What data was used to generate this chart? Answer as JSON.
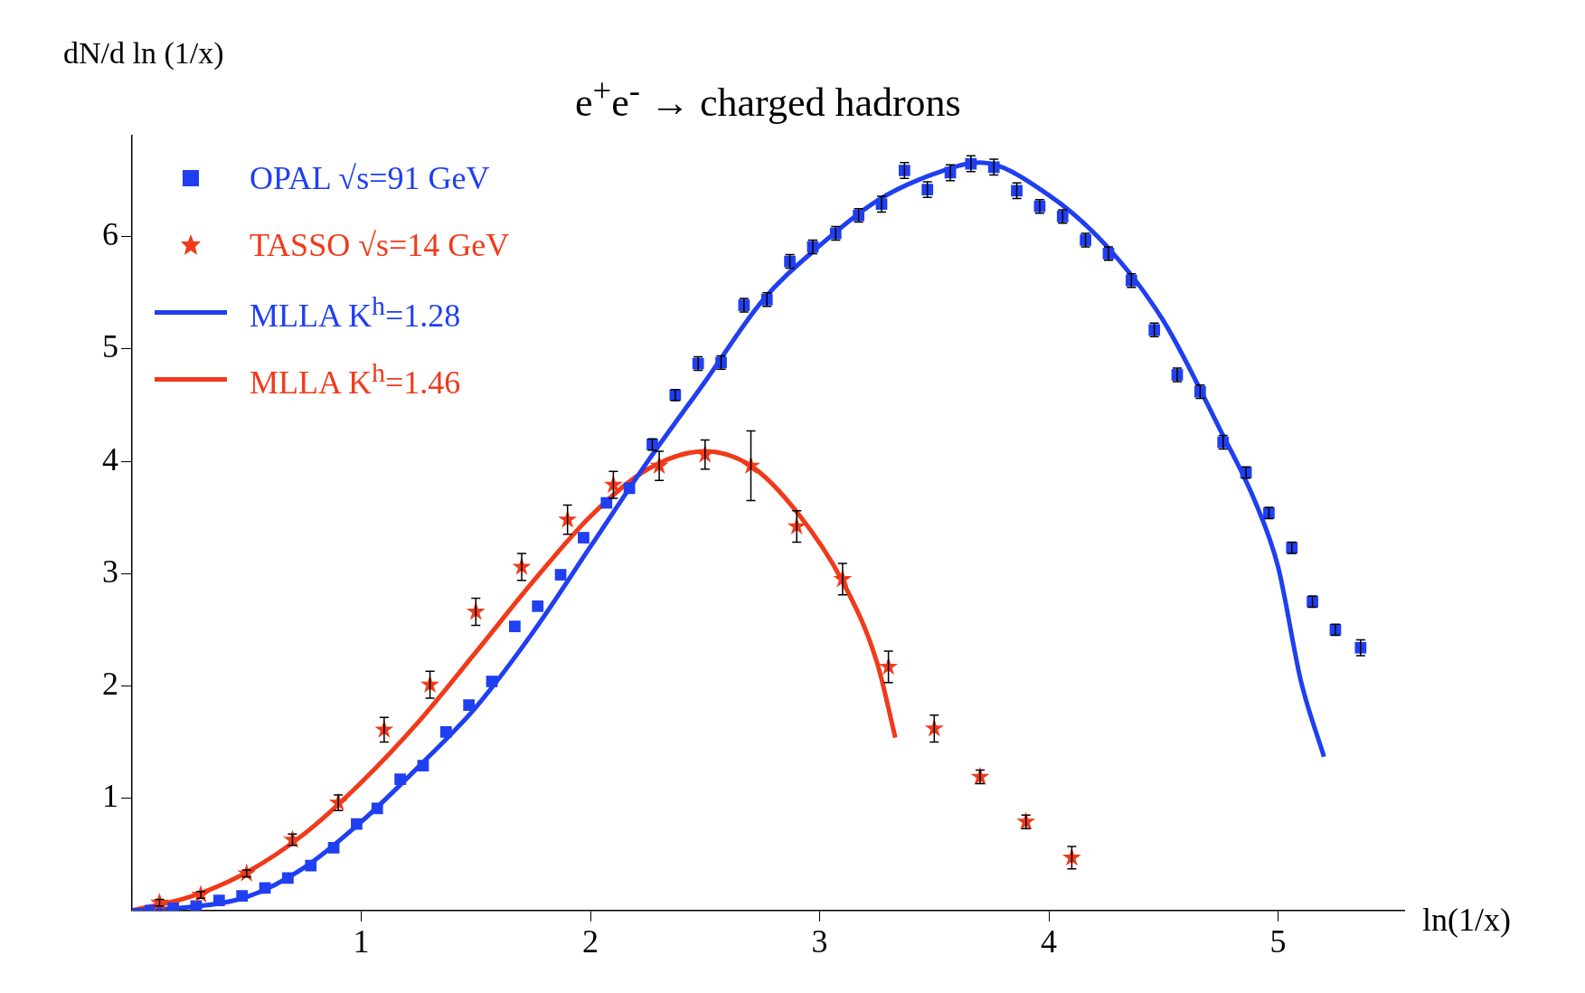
{
  "chart_data": {
    "type": "scatter",
    "title": "e$^{+}$e$^{-}$ → charged hadrons",
    "ylabel": "dN/d ln (1/x)",
    "xlabel": "ln(1/x)",
    "xlim": [
      0,
      5.55
    ],
    "xticks": [
      1,
      2,
      3,
      4,
      5
    ],
    "ylim": [
      0,
      6.9
    ],
    "yticks": [
      1,
      2,
      3,
      4,
      5,
      6
    ],
    "grid": false,
    "legend": "top left",
    "series": [
      {
        "name": "OPAL √s=91 GeV",
        "type": "scatter",
        "marker": "square",
        "color": "#1f3ff0",
        "x": [
          0.08,
          0.18,
          0.28,
          0.38,
          0.48,
          0.58,
          0.68,
          0.78,
          0.88,
          0.98,
          1.07,
          1.17,
          1.27,
          1.37,
          1.47,
          1.57,
          1.67,
          1.77,
          1.87,
          1.97,
          2.07,
          2.17,
          2.27,
          2.37,
          2.47,
          2.57,
          2.67,
          2.77,
          2.87,
          2.97,
          3.07,
          3.17,
          3.27,
          3.37,
          3.47,
          3.57,
          3.66,
          3.76,
          3.86,
          3.96,
          4.06,
          4.16,
          4.26,
          4.36,
          4.46,
          4.56,
          4.66,
          4.76,
          4.86,
          4.96,
          5.06,
          5.15,
          5.25,
          5.36
        ],
        "values": [
          0.0,
          0.02,
          0.04,
          0.09,
          0.13,
          0.2,
          0.29,
          0.4,
          0.56,
          0.77,
          0.91,
          1.17,
          1.29,
          1.59,
          1.83,
          2.04,
          2.53,
          2.71,
          2.99,
          3.32,
          3.63,
          3.76,
          4.15,
          4.59,
          4.87,
          4.88,
          5.39,
          5.44,
          5.78,
          5.91,
          6.03,
          6.19,
          6.29,
          6.59,
          6.42,
          6.57,
          6.65,
          6.62,
          6.41,
          6.27,
          6.18,
          5.97,
          5.85,
          5.61,
          5.17,
          4.77,
          4.62,
          4.17,
          3.9,
          3.54,
          3.23,
          2.75,
          2.5,
          2.34
        ],
        "errors": [
          null,
          null,
          null,
          null,
          null,
          null,
          null,
          null,
          null,
          null,
          null,
          null,
          null,
          null,
          null,
          null,
          null,
          null,
          null,
          null,
          null,
          null,
          0.05,
          0.05,
          0.06,
          0.06,
          0.06,
          0.06,
          0.06,
          0.06,
          0.06,
          0.06,
          0.07,
          0.07,
          0.07,
          0.07,
          0.07,
          0.07,
          0.07,
          0.06,
          0.06,
          0.06,
          0.06,
          0.06,
          0.06,
          0.06,
          0.06,
          0.06,
          0.05,
          0.05,
          0.05,
          0.05,
          0.05,
          0.07
        ]
      },
      {
        "name": "TASSO √s=14 GeV",
        "type": "scatter",
        "marker": "star",
        "color": "#f03a1a",
        "x": [
          0.12,
          0.3,
          0.5,
          0.7,
          0.9,
          1.1,
          1.3,
          1.5,
          1.7,
          1.9,
          2.1,
          2.3,
          2.5,
          2.7,
          2.9,
          3.1,
          3.3,
          3.5,
          3.7,
          3.9,
          4.1
        ],
        "values": [
          0.07,
          0.14,
          0.33,
          0.63,
          0.96,
          1.61,
          2.01,
          2.66,
          3.06,
          3.48,
          3.79,
          3.96,
          4.06,
          3.96,
          3.42,
          2.95,
          2.17,
          1.62,
          1.19,
          0.79,
          0.47
        ],
        "errors": [
          0.03,
          0.03,
          0.03,
          0.05,
          0.07,
          0.11,
          0.12,
          0.12,
          0.12,
          0.13,
          0.12,
          0.13,
          0.13,
          0.31,
          0.14,
          0.14,
          0.14,
          0.12,
          0.06,
          0.06,
          0.1
        ]
      },
      {
        "name": "MLLA K$^{h}$=1.28",
        "type": "line",
        "color": "#1f3ff0",
        "x": [
          0,
          0.25,
          0.5,
          0.75,
          1,
          1.25,
          1.5,
          1.75,
          2,
          2.25,
          2.5,
          2.75,
          3,
          3.25,
          3.5,
          3.7,
          4,
          4.25,
          4.5,
          4.75,
          4.9,
          5,
          5.1,
          5.2
        ],
        "values": [
          0,
          0.03,
          0.12,
          0.38,
          0.79,
          1.28,
          1.81,
          2.48,
          3.24,
          4.0,
          4.71,
          5.43,
          5.92,
          6.32,
          6.56,
          6.66,
          6.37,
          5.92,
          5.25,
          4.27,
          3.64,
          3.06,
          2.04,
          1.37
        ]
      },
      {
        "name": "MLLA K$^{h}$=1.46",
        "type": "line",
        "color": "#f03a1a",
        "x": [
          0,
          0.25,
          0.5,
          0.75,
          1,
          1.25,
          1.5,
          1.75,
          2,
          2.25,
          2.5,
          2.7,
          2.9,
          3.1,
          3.25,
          3.33
        ],
        "values": [
          0,
          0.12,
          0.34,
          0.68,
          1.14,
          1.68,
          2.3,
          2.93,
          3.51,
          3.93,
          4.09,
          3.96,
          3.55,
          2.93,
          2.21,
          1.54
        ]
      }
    ]
  }
}
